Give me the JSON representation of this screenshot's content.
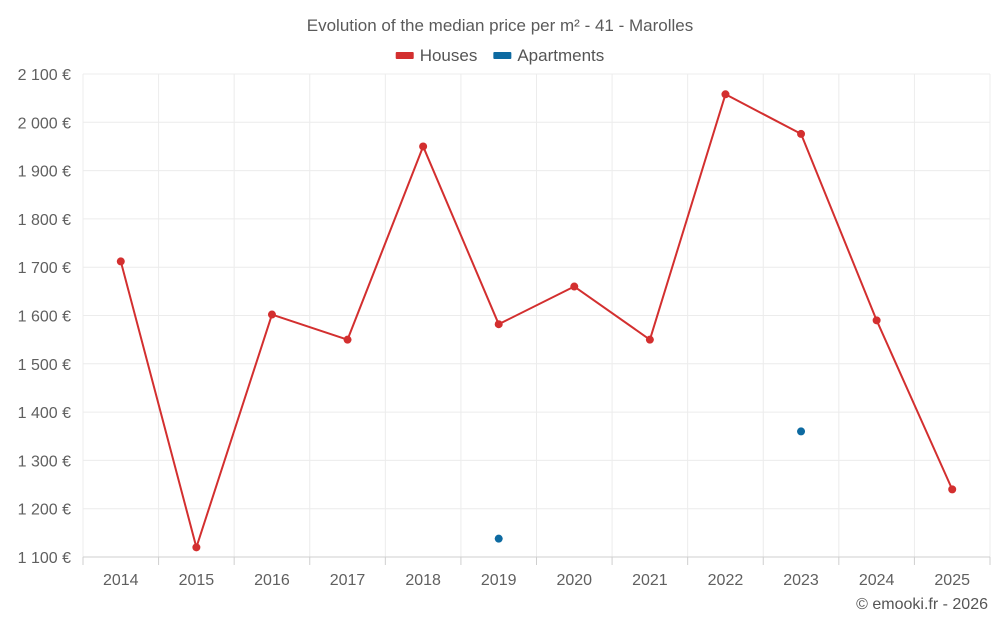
{
  "chart_data": {
    "type": "line",
    "title": "Evolution of the median price per m² - 41 - Marolles",
    "xlabel": "",
    "ylabel": "",
    "categories": [
      "2014",
      "2015",
      "2016",
      "2017",
      "2018",
      "2019",
      "2020",
      "2021",
      "2022",
      "2023",
      "2024",
      "2025"
    ],
    "ylim": [
      1100,
      2100
    ],
    "y_ticks": [
      1100,
      1200,
      1300,
      1400,
      1500,
      1600,
      1700,
      1800,
      1900,
      2000,
      2100
    ],
    "y_tick_labels": [
      "1 100 €",
      "1 200 €",
      "1 300 €",
      "1 400 €",
      "1 500 €",
      "1 600 €",
      "1 700 €",
      "1 800 €",
      "1 900 €",
      "2 000 €",
      "2 100 €"
    ],
    "grid": true,
    "legend_position": "top-center",
    "series": [
      {
        "name": "Houses",
        "color": "#d32f2f",
        "values": [
          1712,
          1120,
          1602,
          1550,
          1950,
          1582,
          1660,
          1550,
          2058,
          1976,
          1590,
          1240
        ]
      },
      {
        "name": "Apartments",
        "color": "#0d6aa1",
        "values": [
          null,
          null,
          null,
          null,
          null,
          1138,
          null,
          null,
          null,
          1360,
          null,
          null
        ]
      }
    ]
  },
  "credit": "© emooki.fr - 2026"
}
